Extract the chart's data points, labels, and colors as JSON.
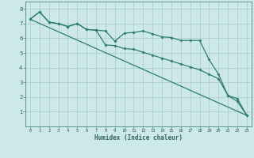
{
  "xlabel": "Humidex (Indice chaleur)",
  "background_color": "#cde8e8",
  "grid_color": "#b8d8d8",
  "line_color": "#2e7d6e",
  "xlim": [
    -0.5,
    23.5
  ],
  "ylim": [
    0,
    8.5
  ],
  "x_ticks": [
    0,
    1,
    2,
    3,
    4,
    5,
    6,
    7,
    8,
    9,
    10,
    11,
    12,
    13,
    14,
    15,
    16,
    17,
    18,
    19,
    20,
    21,
    22,
    23
  ],
  "y_ticks": [
    1,
    2,
    3,
    4,
    5,
    6,
    7,
    8
  ],
  "line1_x": [
    0,
    1,
    2,
    3,
    4,
    5,
    6,
    7,
    8,
    9,
    10,
    11,
    12,
    13,
    14,
    15,
    16,
    17,
    18,
    19,
    20,
    21,
    22,
    23
  ],
  "line1_y": [
    7.3,
    7.8,
    7.1,
    7.0,
    6.8,
    7.0,
    6.6,
    6.55,
    6.5,
    5.8,
    6.35,
    6.4,
    6.5,
    6.3,
    6.1,
    6.05,
    5.85,
    5.85,
    5.85,
    4.55,
    3.55,
    2.1,
    1.9,
    0.75
  ],
  "line2_x": [
    0,
    1,
    2,
    3,
    4,
    5,
    6,
    7,
    8,
    9,
    10,
    11,
    12,
    13,
    14,
    15,
    16,
    17,
    18,
    19,
    20,
    21,
    22,
    23
  ],
  "line2_y": [
    7.3,
    7.8,
    7.1,
    7.0,
    6.8,
    7.0,
    6.6,
    6.55,
    5.55,
    5.5,
    5.3,
    5.25,
    5.05,
    4.85,
    4.65,
    4.45,
    4.25,
    4.05,
    3.85,
    3.55,
    3.25,
    2.1,
    1.7,
    0.75
  ],
  "line3_x": [
    0,
    23
  ],
  "line3_y": [
    7.3,
    0.75
  ]
}
